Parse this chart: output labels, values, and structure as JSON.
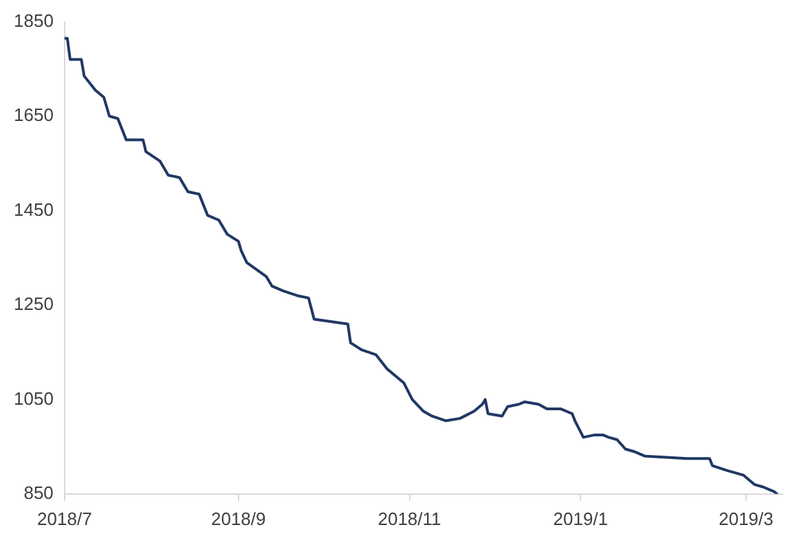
{
  "chart_data": {
    "type": "line",
    "grid": false,
    "legend": false,
    "marker": "none",
    "line_style": "solid",
    "x": [
      "2018-07-01",
      "2018-07-02",
      "2018-07-03",
      "2018-07-07",
      "2018-07-08",
      "2018-07-12",
      "2018-07-15",
      "2018-07-17",
      "2018-07-20",
      "2018-07-23",
      "2018-07-29",
      "2018-07-30",
      "2018-08-04",
      "2018-08-07",
      "2018-08-11",
      "2018-08-14",
      "2018-08-18",
      "2018-08-21",
      "2018-08-25",
      "2018-08-28",
      "2018-09-01",
      "2018-09-02",
      "2018-09-04",
      "2018-09-11",
      "2018-09-13",
      "2018-09-17",
      "2018-09-22",
      "2018-09-26",
      "2018-09-28",
      "2018-10-10",
      "2018-10-11",
      "2018-10-15",
      "2018-10-20",
      "2018-10-24",
      "2018-10-30",
      "2018-11-02",
      "2018-11-06",
      "2018-11-09",
      "2018-11-14",
      "2018-11-19",
      "2018-11-24",
      "2018-11-27",
      "2018-11-28",
      "2018-11-29",
      "2018-12-04",
      "2018-12-06",
      "2018-12-10",
      "2018-12-12",
      "2018-12-17",
      "2018-12-20",
      "2018-12-25",
      "2018-12-29",
      "2018-12-30",
      "2019-01-02",
      "2019-01-06",
      "2019-01-09",
      "2019-01-11",
      "2019-01-14",
      "2019-01-17",
      "2019-01-20",
      "2019-01-24",
      "2019-02-08",
      "2019-02-16",
      "2019-02-17",
      "2019-02-22",
      "2019-02-25",
      "2019-02-28",
      "2019-03-04",
      "2019-03-07",
      "2019-03-11",
      "2019-03-12"
    ],
    "series": [
      {
        "color": "#203864",
        "values": [
          1815,
          1815,
          1770,
          1770,
          1735,
          1705,
          1690,
          1650,
          1645,
          1600,
          1600,
          1575,
          1555,
          1525,
          1520,
          1490,
          1485,
          1440,
          1430,
          1400,
          1385,
          1365,
          1340,
          1310,
          1290,
          1280,
          1270,
          1265,
          1220,
          1210,
          1170,
          1155,
          1145,
          1115,
          1085,
          1050,
          1025,
          1015,
          1005,
          1010,
          1025,
          1040,
          1050,
          1020,
          1015,
          1035,
          1040,
          1045,
          1040,
          1030,
          1030,
          1020,
          1005,
          970,
          975,
          975,
          970,
          965,
          945,
          940,
          930,
          925,
          925,
          910,
          900,
          895,
          890,
          870,
          865,
          855,
          850
        ]
      }
    ],
    "xlim": [
      "2018-07-01",
      "2019-03-14"
    ],
    "xticks": [
      {
        "value": "2018-07-01",
        "label": "2018/7"
      },
      {
        "value": "2018-09-01",
        "label": "2018/9"
      },
      {
        "value": "2018-11-01",
        "label": "2018/11"
      },
      {
        "value": "2019-01-01",
        "label": "2019/1"
      },
      {
        "value": "2019-03-01",
        "label": "2019/3"
      }
    ],
    "ylim": [
      850,
      1850
    ],
    "yticks": [
      850,
      1050,
      1250,
      1450,
      1650,
      1850
    ]
  }
}
